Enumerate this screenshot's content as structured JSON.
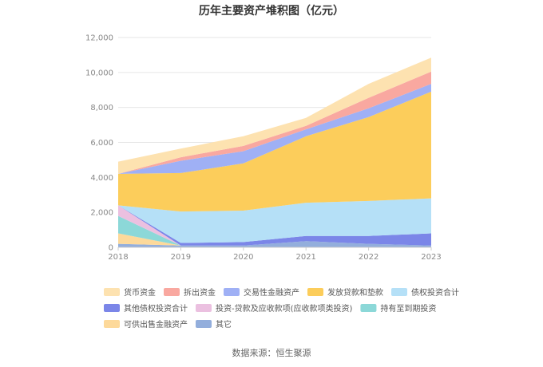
{
  "chart_data": {
    "type": "area",
    "title": "历年主要资产堆积图（亿元）",
    "source": "数据来源：恒生聚源",
    "x": [
      "2018",
      "2019",
      "2020",
      "2021",
      "2022",
      "2023"
    ],
    "y_ticks": [
      "0",
      "2,000",
      "4,000",
      "6,000",
      "8,000",
      "10,000",
      "12,000"
    ],
    "ylim": [
      0,
      12000
    ],
    "stack_order": [
      "其它",
      "可供出售金融资产",
      "持有至到期投资",
      "投资-贷款及应收款项(应收款项类投资)",
      "其他债权投资合计",
      "债权投资合计",
      "发放贷款和垫款",
      "交易性金融资产",
      "拆出资金",
      "货币资金"
    ],
    "series": [
      {
        "name": "货币资金",
        "color": "#fde2b0",
        "values": [
          700,
          500,
          550,
          450,
          800,
          800
        ]
      },
      {
        "name": "拆出资金",
        "color": "#f9a8a0",
        "values": [
          0,
          200,
          300,
          200,
          600,
          700
        ]
      },
      {
        "name": "交易性金融资产",
        "color": "#9fb0f5",
        "values": [
          0,
          700,
          700,
          400,
          500,
          450
        ]
      },
      {
        "name": "发放贷款和垫款",
        "color": "#fccd5b",
        "values": [
          1800,
          2200,
          2700,
          3800,
          4800,
          6100
        ]
      },
      {
        "name": "债权投资合计",
        "color": "#b5e0f7",
        "values": [
          0,
          1800,
          1800,
          1900,
          2000,
          2000
        ]
      },
      {
        "name": "其他债权投资合计",
        "color": "#7b86e8",
        "values": [
          0,
          150,
          200,
          300,
          450,
          700
        ]
      },
      {
        "name": "投资-贷款及应收款项(应收款项类投资)",
        "color": "#ebc0e0",
        "values": [
          600,
          0,
          0,
          0,
          0,
          0
        ]
      },
      {
        "name": "持有至到期投资",
        "color": "#8cd8d8",
        "values": [
          1000,
          0,
          0,
          0,
          0,
          0
        ]
      },
      {
        "name": "可供出售金融资产",
        "color": "#fdd99a",
        "values": [
          600,
          0,
          0,
          0,
          0,
          0
        ]
      },
      {
        "name": "其它",
        "color": "#93aedc",
        "values": [
          200,
          100,
          100,
          350,
          200,
          100
        ]
      }
    ],
    "legend": [
      [
        "货币资金",
        "拆出资金",
        "交易性金融资产",
        "发放贷款和垫款",
        "债权投资合计"
      ],
      [
        "其他债权投资合计",
        "投资-贷款及应收款项(应收款项类投资)",
        "持有至到期投资"
      ],
      [
        "可供出售金融资产",
        "其它"
      ]
    ]
  }
}
